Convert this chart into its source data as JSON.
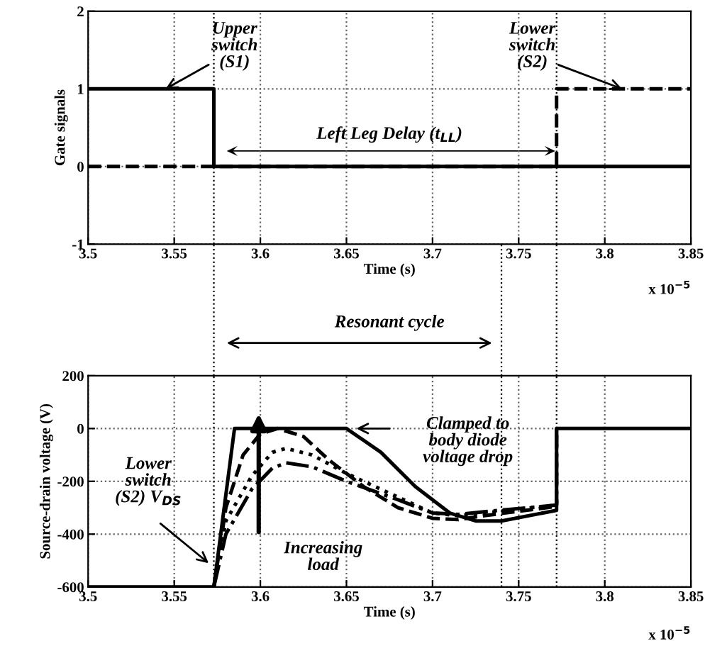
{
  "chart_data": [
    {
      "type": "line",
      "xlabel": "Time (s)",
      "ylabel": "Gate signals",
      "xlim": [
        3.5,
        3.85
      ],
      "xticks": [
        3.5,
        3.55,
        3.6,
        3.65,
        3.7,
        3.75,
        3.8,
        3.85
      ],
      "ylim": [
        -1,
        2
      ],
      "yticks": [
        -1,
        0,
        1,
        2
      ],
      "grid": true,
      "legend": false,
      "series": [
        {
          "color": "#000000",
          "line_style": "solid",
          "x": [
            3.5,
            3.573,
            3.573,
            3.85
          ],
          "values": [
            1,
            1,
            0,
            0
          ]
        },
        {
          "color": "#000000",
          "line_style": "dashed",
          "x": [
            3.5,
            3.772,
            3.772,
            3.85
          ],
          "values": [
            0,
            0,
            1,
            1
          ]
        }
      ],
      "ref_lines": [
        {
          "axis": "x",
          "value": 3.573,
          "color": "#000000",
          "line_style": "dotted"
        },
        {
          "axis": "x",
          "value": 3.772,
          "color": "#000000",
          "line_style": "dotted"
        }
      ],
      "annotations": [
        {
          "text": "Upper\nswitch\n(S1)",
          "x": 3.545,
          "y": 1
        },
        {
          "text": "Lower\nswitch\n(S2)",
          "x": 3.81,
          "y": 1
        },
        "Left Leg Delay (t$_{LL}$)",
        "x 10$^{−5}$"
      ]
    },
    {
      "type": "line",
      "xlabel": "Time (s)",
      "ylabel": "Source-drain voltage (V)",
      "xlim": [
        3.5,
        3.85
      ],
      "xticks": [
        3.5,
        3.55,
        3.6,
        3.65,
        3.7,
        3.75,
        3.8,
        3.85
      ],
      "ylim": [
        -600,
        200
      ],
      "yticks": [
        -600,
        -400,
        -200,
        0,
        200
      ],
      "grid": true,
      "legend": false,
      "series": [
        {
          "color": "#000000",
          "line_style": "solid",
          "x": [
            3.5,
            3.573,
            3.585,
            3.65,
            3.67,
            3.69,
            3.71,
            3.725,
            3.74,
            3.772,
            3.772,
            3.85
          ],
          "values": [
            -600,
            -600,
            0,
            0,
            -90,
            -220,
            -320,
            -350,
            -350,
            -310,
            0,
            0
          ]
        },
        {
          "color": "#000000",
          "line_style": "dashed",
          "x": [
            3.573,
            3.58,
            3.59,
            3.6,
            3.61,
            3.625,
            3.64,
            3.66,
            3.68,
            3.7,
            3.715,
            3.73,
            3.772,
            3.772
          ],
          "values": [
            -600,
            -300,
            -100,
            -20,
            0,
            -30,
            -120,
            -220,
            -300,
            -340,
            -345,
            -330,
            -295,
            0
          ]
        },
        {
          "color": "#000000",
          "line_style": "dotted",
          "x": [
            3.573,
            3.58,
            3.595,
            3.607,
            3.615,
            3.63,
            3.65,
            3.68,
            3.7,
            3.715,
            3.73,
            3.772,
            3.772
          ],
          "values": [
            -600,
            -350,
            -180,
            -90,
            -75,
            -100,
            -170,
            -260,
            -320,
            -330,
            -320,
            -290,
            0
          ]
        },
        {
          "color": "#000000",
          "line_style": "dashdot",
          "x": [
            3.573,
            3.58,
            3.595,
            3.607,
            3.615,
            3.63,
            3.65,
            3.68,
            3.7,
            3.715,
            3.73,
            3.772,
            3.772
          ],
          "values": [
            -600,
            -400,
            -230,
            -150,
            -130,
            -145,
            -200,
            -270,
            -320,
            -325,
            -315,
            -290,
            0
          ]
        }
      ],
      "ref_lines": [
        {
          "axis": "x",
          "value": 3.573,
          "color": "#000000",
          "line_style": "dotted"
        },
        {
          "axis": "x",
          "value": 3.74,
          "color": "#000000",
          "line_style": "dotted"
        },
        {
          "axis": "x",
          "value": 3.772,
          "color": "#000000",
          "line_style": "dotted"
        }
      ],
      "annotations": [
        {
          "text": "Lower\nswitch\n(S2) V$_{DS}$",
          "x": 3.57,
          "y": -510
        },
        "Increasing\nload",
        "Clamped to\nbody diode\nvoltage drop",
        "Resonant cycle",
        "x 10$^{−5}$"
      ]
    }
  ]
}
